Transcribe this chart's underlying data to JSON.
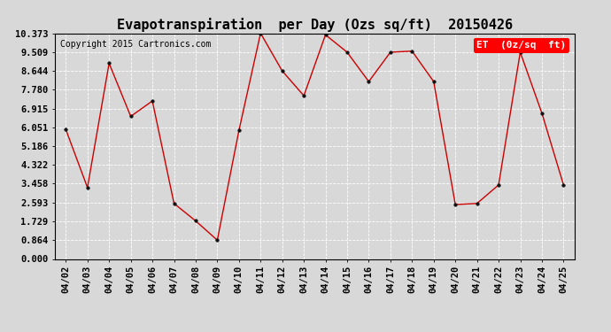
{
  "title": "Evapotranspiration  per Day (Ozs sq/ft)  20150426",
  "copyright": "Copyright 2015 Cartronics.com",
  "legend_label": "ET  (0z/sq  ft)",
  "x_labels": [
    "04/02",
    "04/03",
    "04/04",
    "04/05",
    "04/06",
    "04/07",
    "04/08",
    "04/09",
    "04/10",
    "04/11",
    "04/12",
    "04/13",
    "04/14",
    "04/15",
    "04/16",
    "04/17",
    "04/18",
    "04/19",
    "04/20",
    "04/21",
    "04/22",
    "04/23",
    "04/24",
    "04/25"
  ],
  "y_values": [
    5.95,
    3.28,
    8.99,
    6.55,
    7.26,
    2.55,
    1.75,
    0.864,
    5.9,
    10.373,
    8.64,
    7.5,
    10.3,
    9.5,
    8.15,
    9.5,
    9.55,
    8.15,
    2.5,
    2.55,
    3.4,
    9.5,
    6.7,
    3.4
  ],
  "ylim": [
    0.0,
    10.373
  ],
  "yticks": [
    0.0,
    0.864,
    1.729,
    2.593,
    3.458,
    4.322,
    5.186,
    6.051,
    6.915,
    7.78,
    8.644,
    9.509,
    10.373
  ],
  "line_color": "#cc0000",
  "marker_color": "#111111",
  "bg_color": "#d8d8d8",
  "plot_bg_color": "#d8d8d8",
  "title_fontsize": 11,
  "tick_fontsize": 7.5,
  "copyright_fontsize": 7,
  "legend_fontsize": 8
}
